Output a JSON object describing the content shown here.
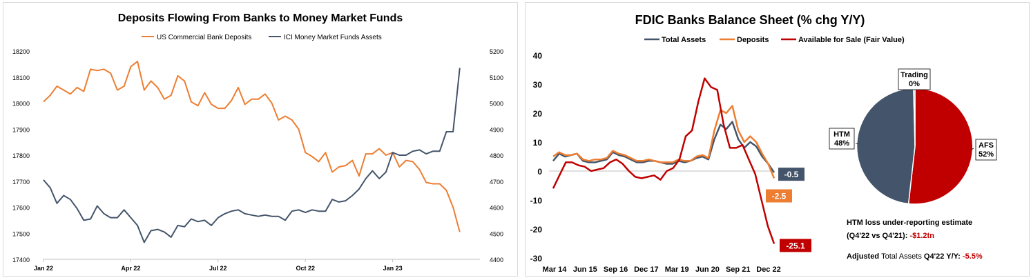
{
  "chart_data": [
    {
      "type": "line",
      "title": "Deposits Flowing From Banks to Money Market Funds",
      "x_tick_labels": [
        "Jan 22",
        "Apr 22",
        "Jul 22",
        "Oct 22",
        "Jan 23"
      ],
      "y_left_ticks": [
        "17400",
        "17500",
        "17600",
        "17700",
        "17800",
        "17900",
        "18000",
        "18100",
        "18200"
      ],
      "y_right_ticks": [
        "4400",
        "4500",
        "4600",
        "4700",
        "4800",
        "4900",
        "5000",
        "5100",
        "5200"
      ],
      "ylim_left": [
        17400,
        18200
      ],
      "ylim_right": [
        4400,
        5200
      ],
      "xlim_weeks": [
        0,
        65
      ],
      "x_tick_weeks": [
        0,
        13,
        26,
        39,
        52
      ],
      "legend_position": "top",
      "grid": false,
      "series": [
        {
          "name": "US Commercial Bank Deposits",
          "axis": "left",
          "color": "#ED7D31",
          "values": [
            18005,
            18030,
            18065,
            18050,
            18035,
            18060,
            18045,
            18130,
            18125,
            18130,
            18115,
            18050,
            18065,
            18140,
            18160,
            18050,
            18085,
            18060,
            18015,
            18030,
            18105,
            18085,
            18005,
            17990,
            18040,
            17995,
            17980,
            17980,
            18010,
            18060,
            17995,
            18015,
            18015,
            18035,
            18000,
            17935,
            17950,
            17935,
            17900,
            17810,
            17795,
            17775,
            17810,
            17735,
            17755,
            17760,
            17780,
            17720,
            17805,
            17805,
            17825,
            17800,
            17810,
            17755,
            17780,
            17775,
            17745,
            17695,
            17690,
            17690,
            17665,
            17600,
            17505
          ]
        },
        {
          "name": "ICI Money Market Funds Assets",
          "axis": "right",
          "color": "#44546A",
          "values": [
            4705,
            4675,
            4615,
            4645,
            4630,
            4595,
            4550,
            4555,
            4605,
            4575,
            4560,
            4560,
            4590,
            4560,
            4530,
            4465,
            4510,
            4515,
            4505,
            4485,
            4530,
            4525,
            4555,
            4545,
            4550,
            4530,
            4560,
            4575,
            4585,
            4590,
            4575,
            4570,
            4565,
            4570,
            4565,
            4565,
            4550,
            4585,
            4590,
            4580,
            4590,
            4585,
            4585,
            4630,
            4620,
            4625,
            4645,
            4670,
            4710,
            4740,
            4710,
            4735,
            4810,
            4800,
            4800,
            4815,
            4820,
            4805,
            4815,
            4815,
            4890,
            4890,
            5135
          ]
        }
      ]
    },
    {
      "type": "line",
      "title": "FDIC Banks Balance Sheet (% chg Y/Y)",
      "x_tick_labels": [
        "Mar 14",
        "Jun 15",
        "Sep 16",
        "Dec 17",
        "Mar 19",
        "Jun 20",
        "Sep 21",
        "Dec 22"
      ],
      "y_ticks": [
        "40",
        "30",
        "20",
        "10",
        "0",
        "-10",
        "-20",
        "-30"
      ],
      "ylim": [
        -30,
        40
      ],
      "legend_position": "top",
      "grid": false,
      "series": [
        {
          "name": "Total Assets",
          "color": "#44546A",
          "values": [
            3.5,
            6,
            5,
            5.5,
            6,
            3.5,
            3,
            3,
            3.5,
            4,
            6.5,
            5.5,
            5,
            4,
            3,
            3,
            3.5,
            3.5,
            3,
            2.5,
            2.5,
            3.5,
            3,
            3.5,
            4.5,
            5,
            4,
            11,
            16,
            14.5,
            17,
            11,
            8,
            10,
            8.5,
            5,
            2.5,
            -0.5
          ]
        },
        {
          "name": "Deposits",
          "color": "#ED7D31",
          "values": [
            5,
            6.5,
            5.5,
            5.5,
            6,
            4,
            3.5,
            4,
            4,
            4.5,
            7,
            6,
            5.5,
            4.5,
            3.5,
            3.5,
            4,
            3.5,
            3,
            3,
            3,
            4,
            3.5,
            3.5,
            5,
            5.5,
            4.5,
            14,
            21,
            20,
            22.5,
            14,
            10,
            12,
            10,
            6,
            2.5,
            -2.5
          ]
        },
        {
          "name": "Available for Sale (Fair Value)",
          "color": "#C00000",
          "values": [
            -6,
            -1.5,
            3,
            3,
            2,
            1.5,
            0,
            0.5,
            1,
            3,
            4,
            2.5,
            0,
            -2,
            -2.5,
            -2,
            -1.5,
            -3,
            0,
            1,
            4,
            12,
            14,
            24,
            32,
            29,
            28,
            16,
            8,
            8,
            9,
            4,
            -1,
            -10,
            -19,
            -25.1
          ]
        }
      ],
      "end_labels": [
        "-0.5",
        "-2.5",
        "-25.1"
      ]
    },
    {
      "type": "pie",
      "slices": [
        {
          "label": "AFS",
          "pct_label": "52%",
          "value": 52,
          "color": "#C00000"
        },
        {
          "label": "HTM",
          "pct_label": "48%",
          "value": 48,
          "color": "#44546A"
        },
        {
          "label": "Trading",
          "pct_label": "0%",
          "value": 0.4,
          "color": "#A5A5A5"
        }
      ]
    }
  ],
  "notes": {
    "htm_line1": "HTM loss under-reporting estimate",
    "htm_line2_prefix": "(Q4'22 vs Q4'21): ",
    "htm_line2_value": "-$1.2tn",
    "adj_prefix_bold": "Adjusted ",
    "adj_middle": "Total Assets",
    "adj_suffix": " Q4'22 Y/Y: ",
    "adj_value": "-5.5%",
    "value_color": "#C00000"
  }
}
